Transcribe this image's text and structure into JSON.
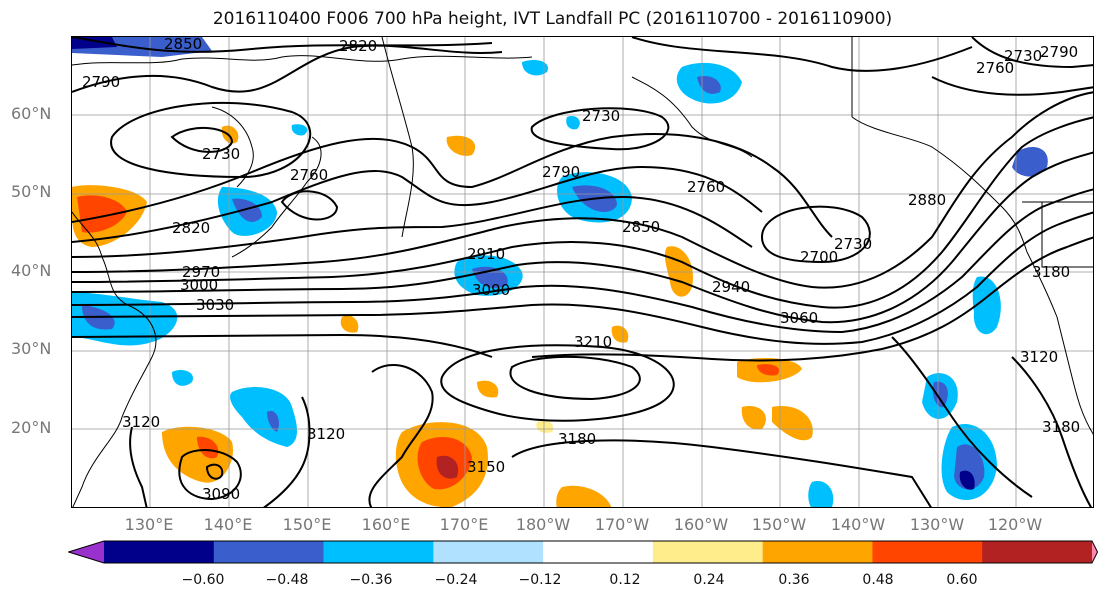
{
  "title": "2016110400 F006 700 hPa height, IVT Landfall PC (2016110700 - 2016110900)",
  "lat_labels": [
    "60°N",
    "50°N",
    "40°N",
    "30°N",
    "20°N"
  ],
  "lon_labels": [
    "130°E",
    "140°E",
    "150°E",
    "160°E",
    "170°E",
    "180°W",
    "170°W",
    "160°W",
    "150°W",
    "140°W",
    "130°W",
    "120°W"
  ],
  "contour_labels": [
    "2850",
    "2820",
    "2790",
    "2730",
    "2760",
    "2730",
    "2790",
    "2760",
    "2820",
    "2850",
    "2910",
    "2700",
    "2730",
    "2970",
    "3000",
    "3030",
    "3090",
    "2940",
    "3060",
    "3210",
    "3180",
    "3150",
    "3120",
    "3090",
    "3120",
    "3180",
    "3120",
    "3180",
    "2880",
    "2760",
    "2730",
    "2790"
  ],
  "colorbar": {
    "ticks": [
      "−0.60",
      "−0.48",
      "−0.36",
      "−0.24",
      "−0.12",
      "0.12",
      "0.24",
      "0.36",
      "0.48",
      "0.60"
    ],
    "colors": [
      "#9932cc",
      "#00008b",
      "#3a5fcd",
      "#00bfff",
      "#b0e2ff",
      "#ffffff",
      "#ffec8b",
      "#ffa500",
      "#ff4500",
      "#b22222",
      "#ff88aa"
    ]
  }
}
